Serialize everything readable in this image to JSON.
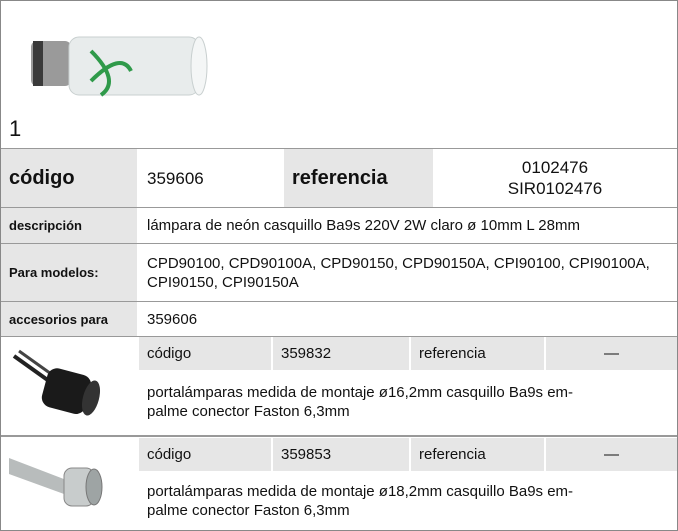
{
  "figure_label": "1",
  "product": {
    "code_label": "código",
    "code": "359606",
    "reference_label": "referencia",
    "references": [
      "0102476",
      "SIR0102476"
    ]
  },
  "rows": [
    {
      "label": "descripción",
      "value": "lámpara de neón  casquillo Ba9s 220V 2W claro ø 10mm L 28mm"
    },
    {
      "label": "Para modelos:",
      "value": "CPD90100, CPD90100A, CPD90150, CPD90150A, CPI90100, CPI90100A, CPI90150, CPI90150A"
    },
    {
      "label": "accesorios para",
      "value": "359606"
    }
  ],
  "accessories": [
    {
      "code_label": "código",
      "code": "359832",
      "reference_label": "referencia",
      "reference": "—",
      "description": [
        "portalámparas  medida de montaje ø16,2mm casquillo Ba9s em-",
        "palme conector Faston 6,3mm"
      ]
    },
    {
      "code_label": "código",
      "code": "359853",
      "reference_label": "referencia",
      "reference": "—",
      "description": [
        "portalámparas  medida de montaje ø18,2mm casquillo Ba9s em-",
        "palme conector Faston 6,3mm"
      ]
    }
  ]
}
